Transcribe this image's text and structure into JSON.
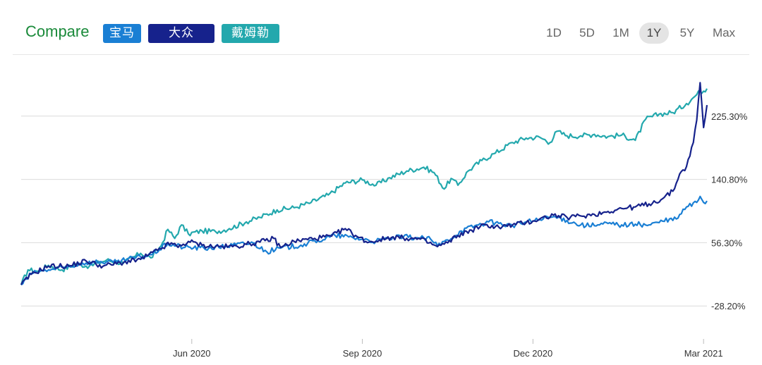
{
  "header": {
    "compare_label": "Compare",
    "compare_color": "#1a8a3a",
    "chips": [
      {
        "label": "宝马",
        "color": "#1a7fd4"
      },
      {
        "label": "大众",
        "color": "#16228c"
      },
      {
        "label": "戴姆勒",
        "color": "#23a8ad"
      }
    ],
    "ranges": [
      "1D",
      "5D",
      "1M",
      "1Y",
      "5Y",
      "Max"
    ],
    "active_range": "1Y"
  },
  "chart_data": {
    "type": "line",
    "title": "",
    "xlabel": "",
    "ylabel": "",
    "ylim": [
      -60,
      290
    ],
    "x_ticks": [
      {
        "label": "Jun 2020",
        "index": 50
      },
      {
        "label": "Sep 2020",
        "index": 100
      },
      {
        "label": "Dec 2020",
        "index": 150
      },
      {
        "label": "Mar 2021",
        "index": 200
      }
    ],
    "y_ticks": [
      {
        "label": "225.30%",
        "value": 225.3
      },
      {
        "label": "140.80%",
        "value": 140.8
      },
      {
        "label": "56.30%",
        "value": 56.3
      },
      {
        "label": "-28.20%",
        "value": -28.2
      }
    ],
    "series": [
      {
        "name": "戴姆勒",
        "color": "#23a8ad",
        "anchors": [
          [
            0,
            0
          ],
          [
            2,
            20
          ],
          [
            5,
            18
          ],
          [
            8,
            26
          ],
          [
            12,
            20
          ],
          [
            16,
            28
          ],
          [
            20,
            25
          ],
          [
            25,
            33
          ],
          [
            30,
            29
          ],
          [
            35,
            42
          ],
          [
            38,
            36
          ],
          [
            41,
            52
          ],
          [
            43,
            74
          ],
          [
            45,
            62
          ],
          [
            47,
            80
          ],
          [
            49,
            68
          ],
          [
            53,
            72
          ],
          [
            57,
            71
          ],
          [
            61,
            75
          ],
          [
            66,
            84
          ],
          [
            70,
            90
          ],
          [
            75,
            100
          ],
          [
            80,
            103
          ],
          [
            85,
            110
          ],
          [
            90,
            120
          ],
          [
            95,
            136
          ],
          [
            100,
            140
          ],
          [
            104,
            133
          ],
          [
            108,
            143
          ],
          [
            113,
            152
          ],
          [
            118,
            157
          ],
          [
            121,
            150
          ],
          [
            124,
            128
          ],
          [
            126,
            142
          ],
          [
            128,
            133
          ],
          [
            131,
            152
          ],
          [
            135,
            166
          ],
          [
            139,
            176
          ],
          [
            144,
            190
          ],
          [
            148,
            196
          ],
          [
            152,
            197
          ],
          [
            155,
            190
          ],
          [
            157,
            205
          ],
          [
            160,
            199
          ],
          [
            164,
            199
          ],
          [
            168,
            201
          ],
          [
            172,
            198
          ],
          [
            176,
            200
          ],
          [
            180,
            193
          ],
          [
            183,
            221
          ],
          [
            187,
            228
          ],
          [
            191,
            230
          ],
          [
            195,
            242
          ],
          [
            198,
            254
          ],
          [
            199,
            258
          ],
          [
            201,
            262
          ]
        ]
      },
      {
        "name": "宝马",
        "color": "#1a7fd4",
        "anchors": [
          [
            0,
            0
          ],
          [
            3,
            15
          ],
          [
            8,
            20
          ],
          [
            13,
            23
          ],
          [
            18,
            29
          ],
          [
            23,
            31
          ],
          [
            28,
            30
          ],
          [
            33,
            36
          ],
          [
            38,
            40
          ],
          [
            43,
            55
          ],
          [
            48,
            50
          ],
          [
            55,
            49
          ],
          [
            62,
            53
          ],
          [
            68,
            56
          ],
          [
            72,
            44
          ],
          [
            76,
            49
          ],
          [
            82,
            53
          ],
          [
            87,
            59
          ],
          [
            92,
            66
          ],
          [
            96,
            64
          ],
          [
            100,
            61
          ],
          [
            104,
            58
          ],
          [
            108,
            62
          ],
          [
            112,
            64
          ],
          [
            116,
            63
          ],
          [
            120,
            61
          ],
          [
            122,
            52
          ],
          [
            125,
            60
          ],
          [
            129,
            72
          ],
          [
            133,
            79
          ],
          [
            137,
            84
          ],
          [
            140,
            82
          ],
          [
            144,
            79
          ],
          [
            148,
            84
          ],
          [
            152,
            87
          ],
          [
            156,
            91
          ],
          [
            160,
            86
          ],
          [
            164,
            80
          ],
          [
            168,
            79
          ],
          [
            172,
            82
          ],
          [
            176,
            80
          ],
          [
            180,
            81
          ],
          [
            184,
            80
          ],
          [
            188,
            85
          ],
          [
            192,
            88
          ],
          [
            195,
            104
          ],
          [
            198,
            110
          ],
          [
            199,
            118
          ],
          [
            200,
            110
          ],
          [
            201,
            112
          ]
        ]
      },
      {
        "name": "大众",
        "color": "#16228c",
        "anchors": [
          [
            0,
            0
          ],
          [
            3,
            14
          ],
          [
            8,
            25
          ],
          [
            14,
            25
          ],
          [
            19,
            32
          ],
          [
            24,
            25
          ],
          [
            30,
            30
          ],
          [
            35,
            34
          ],
          [
            40,
            46
          ],
          [
            44,
            56
          ],
          [
            46,
            50
          ],
          [
            49,
            58
          ],
          [
            53,
            53
          ],
          [
            57,
            51
          ],
          [
            62,
            51
          ],
          [
            66,
            54
          ],
          [
            70,
            57
          ],
          [
            74,
            62
          ],
          [
            76,
            50
          ],
          [
            80,
            58
          ],
          [
            86,
            62
          ],
          [
            91,
            65
          ],
          [
            95,
            75
          ],
          [
            99,
            63
          ],
          [
            102,
            57
          ],
          [
            105,
            60
          ],
          [
            109,
            64
          ],
          [
            113,
            62
          ],
          [
            117,
            61
          ],
          [
            122,
            51
          ],
          [
            125,
            56
          ],
          [
            128,
            66
          ],
          [
            132,
            73
          ],
          [
            136,
            80
          ],
          [
            140,
            77
          ],
          [
            144,
            80
          ],
          [
            148,
            83
          ],
          [
            152,
            88
          ],
          [
            156,
            93
          ],
          [
            160,
            90
          ],
          [
            164,
            92
          ],
          [
            168,
            94
          ],
          [
            172,
            98
          ],
          [
            176,
            102
          ],
          [
            180,
            104
          ],
          [
            184,
            108
          ],
          [
            188,
            115
          ],
          [
            191,
            125
          ],
          [
            193,
            148
          ],
          [
            195,
            158
          ],
          [
            197,
            190
          ],
          [
            198,
            220
          ],
          [
            199,
            270
          ],
          [
            200,
            210
          ],
          [
            201,
            240
          ]
        ]
      }
    ]
  }
}
